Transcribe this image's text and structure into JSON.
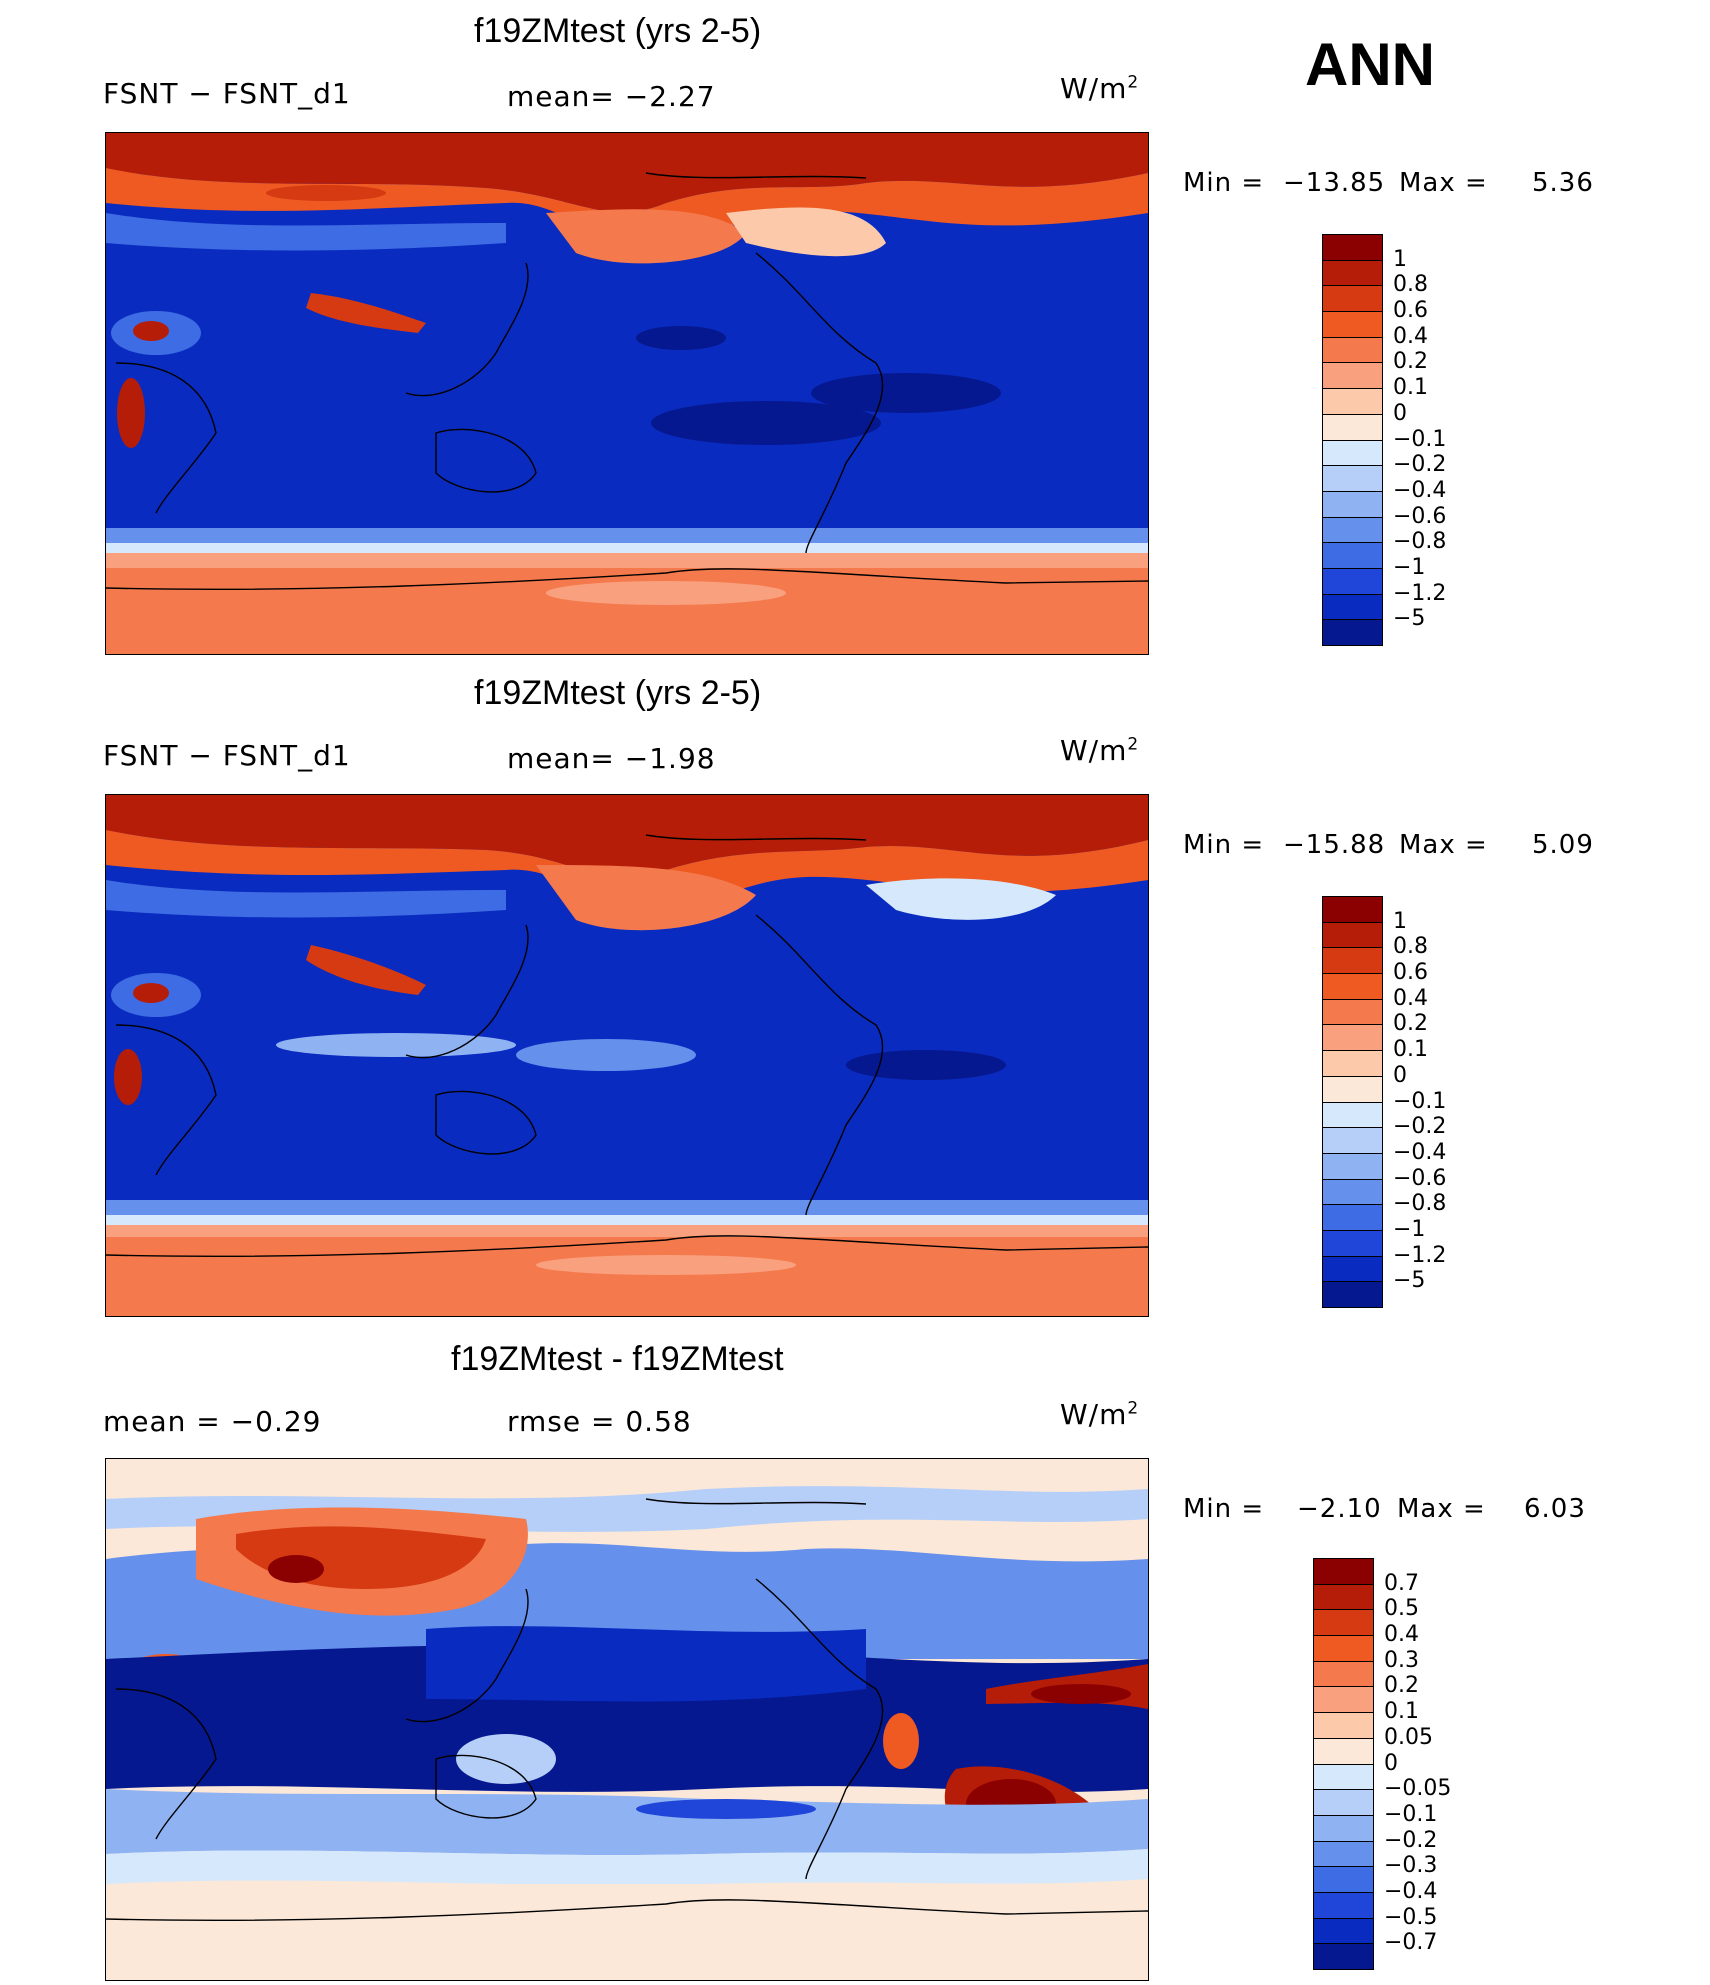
{
  "header": {
    "season": "ANN"
  },
  "panels": [
    {
      "title": "f19ZMtest (yrs 2-5)",
      "left_label": "FSNT  −  FSNT_d1",
      "center_label": "mean=   −2.27",
      "units": "W/m",
      "units_sup": "2",
      "stats": {
        "min_label": "Min  =",
        "min_value": "−13.85",
        "max_label": "Max  =",
        "max_value": "5.36"
      },
      "colorbar": {
        "ticks": [
          "1",
          "0.8",
          "0.6",
          "0.4",
          "0.2",
          "0.1",
          "0",
          "−0.1",
          "−0.2",
          "−0.4",
          "−0.6",
          "−0.8",
          "−1",
          "−1.2",
          "−5"
        ],
        "colors": [
          "#8b0000",
          "#b51d08",
          "#d63a12",
          "#ee5a22",
          "#f47a4e",
          "#f9a07e",
          "#fcc9aa",
          "#fbe8d8",
          "#d6e8fb",
          "#b5cff9",
          "#8fb2f3",
          "#6590ec",
          "#3e6ce5",
          "#1f46d8",
          "#0a2bbf",
          "#06188f"
        ]
      }
    },
    {
      "title": "f19ZMtest (yrs 2-5)",
      "left_label": "FSNT  −  FSNT_d1",
      "center_label": "mean=   −1.98",
      "units": "W/m",
      "units_sup": "2",
      "stats": {
        "min_label": "Min  =",
        "min_value": "−15.88",
        "max_label": "Max  =",
        "max_value": "5.09"
      },
      "colorbar": {
        "ticks": [
          "1",
          "0.8",
          "0.6",
          "0.4",
          "0.2",
          "0.1",
          "0",
          "−0.1",
          "−0.2",
          "−0.4",
          "−0.6",
          "−0.8",
          "−1",
          "−1.2",
          "−5"
        ],
        "colors": [
          "#8b0000",
          "#b51d08",
          "#d63a12",
          "#ee5a22",
          "#f47a4e",
          "#f9a07e",
          "#fcc9aa",
          "#fbe8d8",
          "#d6e8fb",
          "#b5cff9",
          "#8fb2f3",
          "#6590ec",
          "#3e6ce5",
          "#1f46d8",
          "#0a2bbf",
          "#06188f"
        ]
      }
    },
    {
      "title": "f19ZMtest - f19ZMtest",
      "left_label": "mean  =    −0.29",
      "center_label": "rmse  =     0.58",
      "units": "W/m",
      "units_sup": "2",
      "stats": {
        "min_label": "Min  =",
        "min_value": "−2.10",
        "max_label": "Max  =",
        "max_value": "6.03"
      },
      "colorbar": {
        "ticks": [
          "0.7",
          "0.5",
          "0.4",
          "0.3",
          "0.2",
          "0.1",
          "0.05",
          "0",
          "−0.05",
          "−0.1",
          "−0.2",
          "−0.3",
          "−0.4",
          "−0.5",
          "−0.7"
        ],
        "colors": [
          "#8b0000",
          "#b51d08",
          "#d63a12",
          "#ee5a22",
          "#f47a4e",
          "#f9a07e",
          "#fcc9aa",
          "#fbe8d8",
          "#d6e8fb",
          "#b5cff9",
          "#8fb2f3",
          "#6590ec",
          "#3e6ce5",
          "#1f46d8",
          "#0a2bbf",
          "#06188f"
        ]
      }
    }
  ],
  "chart_data": [
    {
      "type": "heatmap",
      "title": "f19ZMtest (yrs 2-5)",
      "variable": "FSNT  −  FSNT_d1",
      "mean": -2.27,
      "min": -13.85,
      "max": 5.36,
      "units": "W/m2",
      "levels": [
        -5,
        -1.2,
        -1,
        -0.8,
        -0.6,
        -0.4,
        -0.2,
        -0.1,
        0,
        0.1,
        0.2,
        0.4,
        0.6,
        0.8,
        1
      ]
    },
    {
      "type": "heatmap",
      "title": "f19ZMtest (yrs 2-5)",
      "variable": "FSNT  −  FSNT_d1",
      "mean": -1.98,
      "min": -15.88,
      "max": 5.09,
      "units": "W/m2",
      "levels": [
        -5,
        -1.2,
        -1,
        -0.8,
        -0.6,
        -0.4,
        -0.2,
        -0.1,
        0,
        0.1,
        0.2,
        0.4,
        0.6,
        0.8,
        1
      ]
    },
    {
      "type": "heatmap",
      "title": "f19ZMtest - f19ZMtest",
      "mean": -0.29,
      "rmse": 0.58,
      "min": -2.1,
      "max": 6.03,
      "units": "W/m2",
      "levels": [
        -0.7,
        -0.5,
        -0.4,
        -0.3,
        -0.2,
        -0.1,
        -0.05,
        0,
        0.05,
        0.1,
        0.2,
        0.3,
        0.4,
        0.5,
        0.7
      ]
    }
  ]
}
